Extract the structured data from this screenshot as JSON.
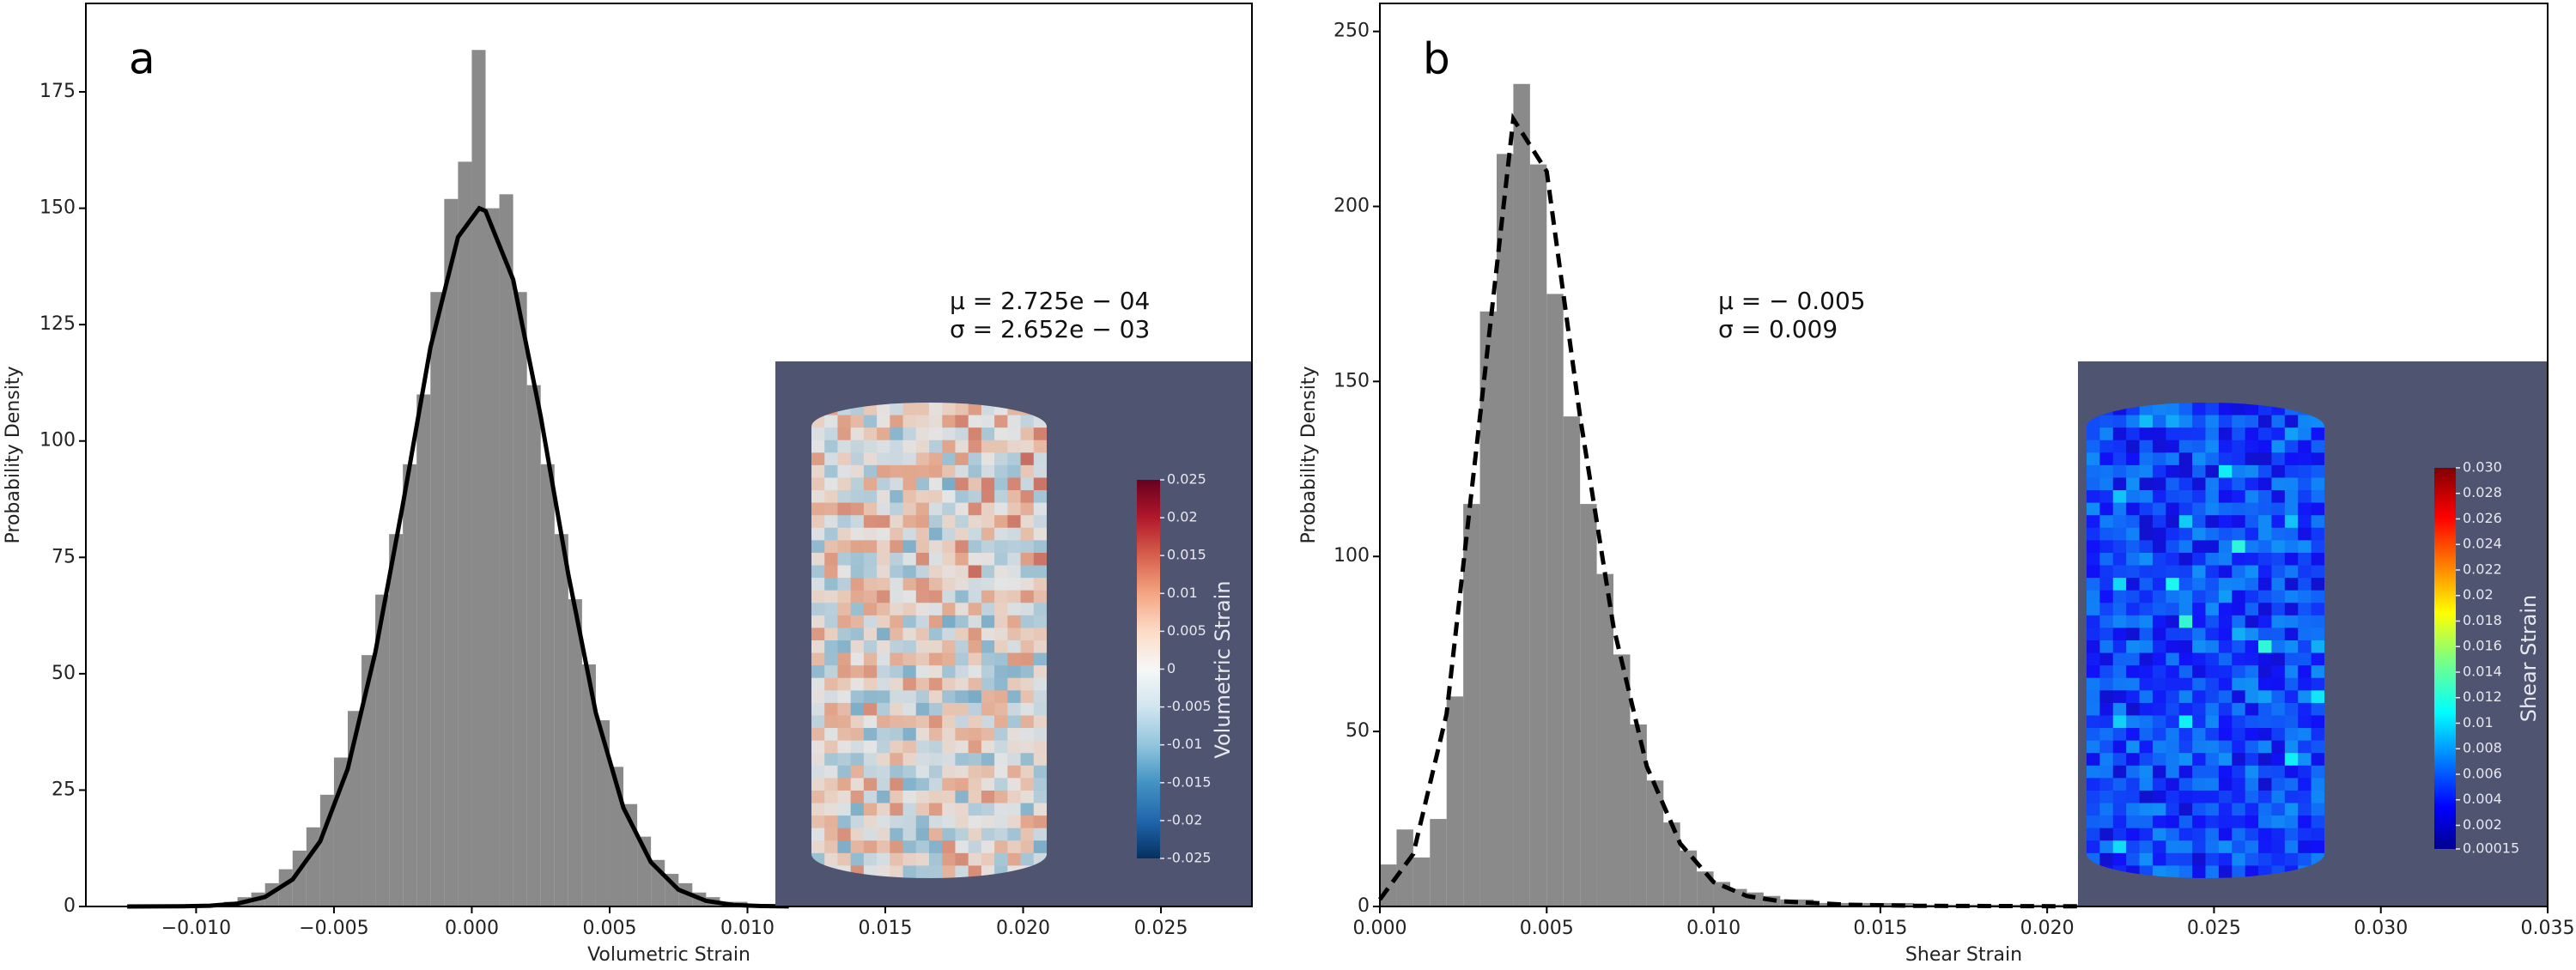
{
  "chart_data": [
    {
      "type": "histogram",
      "panel_label": "a",
      "xlabel": "Volumetric Strain",
      "ylabel": "Probability Density",
      "bins": [
        -0.0125,
        -0.012,
        -0.0115,
        -0.011,
        -0.0105,
        -0.01,
        -0.0095,
        -0.009,
        -0.0085,
        -0.008,
        -0.0075,
        -0.007,
        -0.0065,
        -0.006,
        -0.0055,
        -0.005,
        -0.0045,
        -0.004,
        -0.0035,
        -0.003,
        -0.0025,
        -0.002,
        -0.0015,
        -0.001,
        -0.0005,
        0,
        0.0005,
        0.001,
        0.0015,
        0.002,
        0.0025,
        0.003,
        0.0035,
        0.004,
        0.0045,
        0.005,
        0.0055,
        0.006,
        0.0065,
        0.007,
        0.0075,
        0.008,
        0.0085,
        0.009,
        0.0095,
        0.01,
        0.0105,
        0.011,
        0.0115
      ],
      "counts": [
        0,
        0,
        0,
        0,
        0,
        0,
        0,
        1,
        2,
        3,
        5,
        8,
        12,
        17,
        24,
        32,
        42,
        54,
        67,
        80,
        95,
        110,
        132,
        152,
        160,
        184,
        150,
        153,
        132,
        112,
        95,
        80,
        66,
        52,
        40,
        30,
        22,
        15,
        10,
        7,
        5,
        3,
        2,
        1,
        1,
        0.5,
        0,
        0
      ],
      "color": "#8a8a8a",
      "fit": {
        "x": [
          -0.0125,
          -0.0115,
          -0.0105,
          -0.0095,
          -0.0085,
          -0.0075,
          -0.0065,
          -0.0055,
          -0.0045,
          -0.0035,
          -0.0025,
          -0.0015,
          -0.0005,
          0.00027,
          0.0005,
          0.0015,
          0.0025,
          0.0035,
          0.0045,
          0.0055,
          0.0065,
          0.0075,
          0.0085,
          0.0095,
          0.0105,
          0.0115
        ],
        "values": [
          0,
          0.01,
          0.04,
          0.17,
          0.62,
          2.05,
          5.8,
          14,
          29.6,
          54.6,
          86.4,
          120.1,
          143.8,
          150,
          149.4,
          134.7,
          105.3,
          71.4,
          41.6,
          21.2,
          9.5,
          3.6,
          1.2,
          0.34,
          0.09,
          0.02
        ],
        "color": "#000000",
        "dashed": false
      },
      "annotations": [
        "μ = 2.725e − 04",
        "σ = 2.652e − 03"
      ],
      "xlim": [
        -0.014,
        0.0283
      ],
      "ylim": [
        0,
        194
      ],
      "xticks": [
        {
          "value": -0.01,
          "label": "−0.010"
        },
        {
          "value": -0.005,
          "label": "−0.005"
        },
        {
          "value": 0,
          "label": "0.000"
        },
        {
          "value": 0.005,
          "label": "0.005"
        },
        {
          "value": 0.01,
          "label": "0.010"
        },
        {
          "value": 0.015,
          "label": "0.015"
        },
        {
          "value": 0.02,
          "label": "0.020"
        },
        {
          "value": 0.025,
          "label": "0.025"
        }
      ],
      "yticks": [
        0,
        25,
        50,
        75,
        100,
        125,
        150,
        175
      ],
      "colorbar": {
        "label": "Volumetric Strain",
        "colormap": "RdBu_r",
        "clim": [
          -0.025,
          0.025
        ],
        "ticks": [
          0.025,
          0.02,
          0.015,
          0.01,
          0.005,
          0,
          -0.005,
          -0.01,
          -0.015,
          -0.02,
          -0.025
        ]
      }
    },
    {
      "type": "histogram",
      "panel_label": "b",
      "xlabel": "Shear Strain",
      "ylabel": "Probability Density",
      "bins": [
        0,
        0.0005,
        0.001,
        0.0015,
        0.002,
        0.0025,
        0.003,
        0.0035,
        0.004,
        0.0045,
        0.005,
        0.0055,
        0.006,
        0.0065,
        0.007,
        0.0075,
        0.008,
        0.0085,
        0.009,
        0.0095,
        0.01,
        0.0105,
        0.011,
        0.0115,
        0.012,
        0.0125,
        0.013,
        0.0135,
        0.014,
        0.0145,
        0.015,
        0.0155,
        0.016,
        0.0165,
        0.017,
        0.0175,
        0.018,
        0.0185,
        0.019,
        0.0195,
        0.02,
        0.0205,
        0.021
      ],
      "counts": [
        12,
        22,
        14,
        25,
        60,
        115,
        170,
        215,
        235,
        212,
        175,
        140,
        115,
        95,
        72,
        52,
        36,
        24,
        16,
        10,
        7,
        5,
        4,
        3,
        2,
        2,
        1,
        1,
        1,
        1,
        1,
        1,
        0.5,
        0.5,
        0.5,
        0.5,
        0.5,
        0.5,
        0.5,
        0.5,
        0.5,
        0.5
      ],
      "color": "#8a8a8a",
      "fit": {
        "x": [
          0,
          0.001,
          0.002,
          0.003,
          0.004,
          0.005,
          0.006,
          0.007,
          0.008,
          0.009,
          0.01,
          0.011,
          0.012,
          0.014,
          0.016,
          0.021
        ],
        "values": [
          2,
          15,
          55,
          140,
          225,
          210,
          140,
          80,
          40,
          18,
          7,
          3,
          1.5,
          0.5,
          0.2,
          0.05
        ],
        "color": "#000000",
        "dashed": true
      },
      "annotations": [
        "μ = − 0.005",
        "σ = 0.009"
      ],
      "xlim": [
        0,
        0.035
      ],
      "ylim": [
        0,
        258
      ],
      "xticks": [
        {
          "value": 0,
          "label": "0.000"
        },
        {
          "value": 0.005,
          "label": "0.005"
        },
        {
          "value": 0.01,
          "label": "0.010"
        },
        {
          "value": 0.015,
          "label": "0.015"
        },
        {
          "value": 0.02,
          "label": "0.020"
        },
        {
          "value": 0.025,
          "label": "0.025"
        },
        {
          "value": 0.03,
          "label": "0.030"
        },
        {
          "value": 0.035,
          "label": "0.035"
        }
      ],
      "yticks": [
        0,
        50,
        100,
        150,
        200,
        250
      ],
      "colorbar": {
        "label": "Shear Strain",
        "colormap": "jet",
        "clim": [
          0.00015,
          0.03
        ],
        "ticks": [
          {
            "value": 0.03,
            "label": "0.030"
          },
          0.028,
          0.026,
          0.024,
          0.022,
          0.02,
          0.018,
          0.016,
          0.014,
          0.012,
          0.01,
          0.008,
          0.006,
          0.004,
          0.002,
          0.00015
        ]
      }
    }
  ]
}
